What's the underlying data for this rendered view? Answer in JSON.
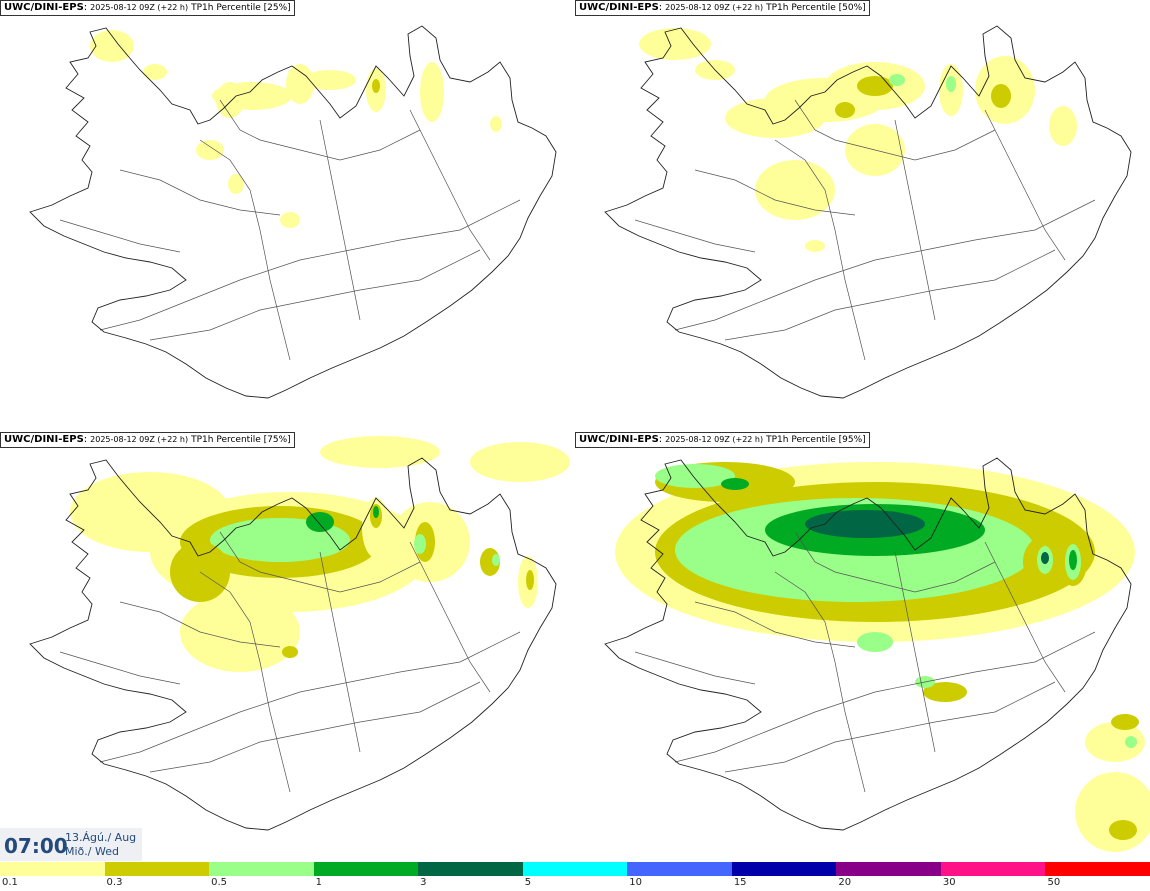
{
  "panels": [
    {
      "model": "UWC/DINI-EPS",
      "run": "2025-08-12 09Z (+22 h)",
      "param": "TP1h Percentile [25%]"
    },
    {
      "model": "UWC/DINI-EPS",
      "run": "2025-08-12 09Z (+22 h)",
      "param": "TP1h Percentile [50%]"
    },
    {
      "model": "UWC/DINI-EPS",
      "run": "2025-08-12 09Z (+22 h)",
      "param": "TP1h Percentile [75%]"
    },
    {
      "model": "UWC/DINI-EPS",
      "run": "2025-08-12 09Z (+22 h)",
      "param": "TP1h Percentile [95%]"
    }
  ],
  "valid_time": {
    "time": "07:00",
    "date_line1": "13.Ágú./ Aug",
    "date_line2": "Mið./ Wed"
  },
  "legend": {
    "colors": [
      "#ffff99",
      "#cccc00",
      "#99ff88",
      "#00aa22",
      "#006644",
      "#00ffff",
      "#4466ff",
      "#0000aa",
      "#880088",
      "#ff1188",
      "#ff0000"
    ],
    "ticks": [
      "0.1",
      "0.3",
      "0.5",
      "1",
      "3",
      "5",
      "10",
      "15",
      "20",
      "30",
      "50"
    ]
  },
  "map_colors": {
    "coast": "#222222",
    "roads": "#555555",
    "light": "#ffff99",
    "mid": "#cccc00",
    "green": "#99ff88",
    "dark": "#00aa22",
    "darker": "#006644"
  }
}
